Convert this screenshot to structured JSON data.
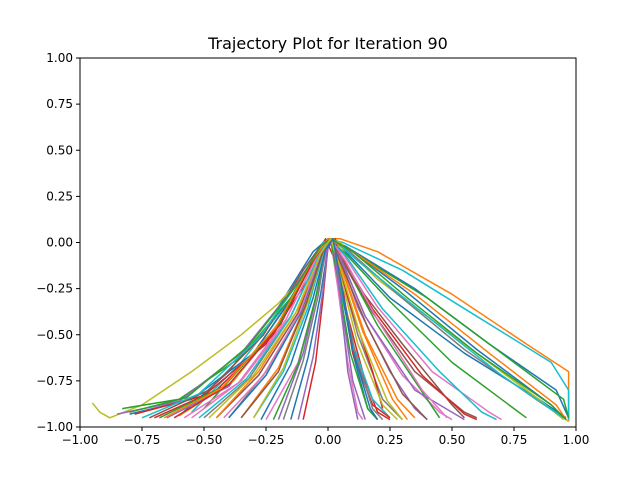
{
  "chart_data": {
    "type": "line",
    "title": "Trajectory Plot for Iteration 90",
    "xlabel": "",
    "ylabel": "",
    "xlim": [
      -1.0,
      1.0
    ],
    "ylim": [
      -1.0,
      1.0
    ],
    "xticks": [
      -1.0,
      -0.75,
      -0.5,
      -0.25,
      0.0,
      0.25,
      0.5,
      0.75,
      1.0
    ],
    "xtick_labels": [
      "−1.00",
      "−0.75",
      "−0.50",
      "−0.25",
      "0.00",
      "0.25",
      "0.50",
      "0.75",
      "1.00"
    ],
    "yticks": [
      1.0,
      0.75,
      0.5,
      0.25,
      0.0,
      -0.25,
      -0.5,
      -0.75,
      -1.0
    ],
    "ytick_labels": [
      "1.00",
      "0.75",
      "0.50",
      "0.25",
      "0.00",
      "−0.25",
      "−0.50",
      "−0.75",
      "−1.00"
    ],
    "grid": false,
    "legend": "none",
    "palette": [
      "#1f77b4",
      "#ff7f0e",
      "#2ca02c",
      "#d62728",
      "#9467bd",
      "#8c564b",
      "#e377c2",
      "#7f7f7f",
      "#bcbd22",
      "#17becf"
    ],
    "series": [
      {
        "color": "#ff7f0e",
        "x": [
          -0.5,
          -0.3,
          -0.12,
          -0.03,
          0.0,
          0.05,
          0.2,
          0.5,
          0.8,
          0.97,
          0.97
        ],
        "y": [
          -0.9,
          -0.6,
          -0.25,
          -0.02,
          0.02,
          0.02,
          -0.05,
          -0.28,
          -0.55,
          -0.7,
          -0.97
        ]
      },
      {
        "color": "#17becf",
        "x": [
          -0.55,
          -0.35,
          -0.15,
          -0.04,
          0.0,
          0.06,
          0.3,
          0.6,
          0.9,
          0.97,
          0.97
        ],
        "y": [
          -0.92,
          -0.65,
          -0.3,
          -0.05,
          0.02,
          0.0,
          -0.15,
          -0.4,
          -0.65,
          -0.8,
          -0.96
        ]
      },
      {
        "color": "#1f77b4",
        "x": [
          -0.6,
          -0.4,
          -0.2,
          -0.06,
          0.0,
          0.07,
          0.35,
          0.65,
          0.92,
          0.97
        ],
        "y": [
          -0.94,
          -0.7,
          -0.35,
          -0.05,
          0.02,
          -0.02,
          -0.25,
          -0.55,
          -0.8,
          -0.95
        ]
      },
      {
        "color": "#2ca02c",
        "x": [
          -0.5,
          -0.3,
          -0.12,
          -0.02,
          0.02,
          0.1,
          0.4,
          0.7,
          0.95,
          0.97
        ],
        "y": [
          -0.9,
          -0.6,
          -0.25,
          0.0,
          0.02,
          -0.05,
          -0.3,
          -0.6,
          -0.85,
          -0.95
        ]
      },
      {
        "color": "#bcbd22",
        "x": [
          -0.95,
          -0.92,
          -0.88,
          -0.75,
          -0.55,
          -0.35,
          -0.2,
          -0.1,
          -0.03,
          0.0,
          0.05,
          0.2,
          0.5,
          0.8,
          0.97
        ],
        "y": [
          -0.87,
          -0.92,
          -0.95,
          -0.88,
          -0.7,
          -0.5,
          -0.33,
          -0.18,
          -0.05,
          0.02,
          0.0,
          -0.2,
          -0.5,
          -0.8,
          -0.97
        ]
      },
      {
        "color": "#d62728",
        "x": [
          -0.7,
          -0.45,
          -0.22,
          -0.08,
          -0.01,
          0.03,
          0.08,
          0.15,
          0.2,
          0.25
        ],
        "y": [
          -0.95,
          -0.8,
          -0.5,
          -0.15,
          0.02,
          -0.1,
          -0.4,
          -0.75,
          -0.92,
          -0.96
        ]
      },
      {
        "color": "#9467bd",
        "x": [
          -0.65,
          -0.4,
          -0.2,
          -0.06,
          0.0,
          0.04,
          0.12,
          0.25,
          0.35,
          0.4
        ],
        "y": [
          -0.95,
          -0.78,
          -0.45,
          -0.1,
          0.02,
          -0.05,
          -0.35,
          -0.7,
          -0.9,
          -0.96
        ]
      },
      {
        "color": "#e377c2",
        "x": [
          -0.55,
          -0.35,
          -0.15,
          -0.04,
          0.01,
          0.05,
          0.15,
          0.3,
          0.45,
          0.5
        ],
        "y": [
          -0.95,
          -0.75,
          -0.4,
          -0.08,
          0.02,
          -0.08,
          -0.4,
          -0.72,
          -0.92,
          -0.96
        ]
      },
      {
        "color": "#8c564b",
        "x": [
          -0.45,
          -0.28,
          -0.12,
          -0.03,
          0.01,
          0.06,
          0.18,
          0.35,
          0.55,
          0.6
        ],
        "y": [
          -0.95,
          -0.72,
          -0.38,
          -0.06,
          0.02,
          -0.1,
          -0.38,
          -0.7,
          -0.92,
          -0.95
        ]
      },
      {
        "color": "#7f7f7f",
        "x": [
          -0.4,
          -0.25,
          -0.1,
          -0.02,
          0.01,
          0.05,
          0.12,
          0.22,
          0.3
        ],
        "y": [
          -0.95,
          -0.7,
          -0.35,
          -0.05,
          0.02,
          -0.15,
          -0.5,
          -0.85,
          -0.96
        ]
      },
      {
        "color": "#1f77b4",
        "x": [
          -0.8,
          -0.55,
          -0.3,
          -0.12,
          -0.03,
          0.0,
          0.05,
          0.25,
          0.55,
          0.85,
          0.96
        ],
        "y": [
          -0.93,
          -0.85,
          -0.6,
          -0.25,
          -0.03,
          0.02,
          -0.02,
          -0.3,
          -0.6,
          -0.85,
          -0.95
        ]
      },
      {
        "color": "#2ca02c",
        "x": [
          -0.83,
          -0.6,
          -0.35,
          -0.15,
          -0.04,
          0.0,
          0.06,
          0.2,
          0.4,
          0.45
        ],
        "y": [
          -0.9,
          -0.85,
          -0.62,
          -0.3,
          -0.05,
          0.02,
          -0.1,
          -0.45,
          -0.85,
          -0.95
        ]
      },
      {
        "color": "#d62728",
        "x": [
          -0.78,
          -0.5,
          -0.25,
          -0.08,
          -0.01,
          0.02,
          0.08,
          0.18,
          0.22
        ],
        "y": [
          -0.93,
          -0.83,
          -0.55,
          -0.2,
          0.0,
          0.01,
          -0.3,
          -0.7,
          -0.9
        ]
      },
      {
        "color": "#17becf",
        "x": [
          -0.3,
          -0.18,
          -0.08,
          -0.02,
          0.01,
          0.04,
          0.1,
          0.18,
          0.25
        ],
        "y": [
          -0.95,
          -0.7,
          -0.35,
          -0.06,
          0.02,
          -0.2,
          -0.55,
          -0.85,
          -0.95
        ]
      },
      {
        "color": "#ff7f0e",
        "x": [
          -0.35,
          -0.2,
          -0.08,
          -0.02,
          0.01,
          0.06,
          0.15,
          0.28,
          0.35
        ],
        "y": [
          -0.95,
          -0.68,
          -0.3,
          -0.04,
          0.02,
          -0.15,
          -0.5,
          -0.85,
          -0.95
        ]
      },
      {
        "color": "#9467bd",
        "x": [
          -0.2,
          -0.1,
          -0.04,
          0.0,
          0.02,
          0.05,
          0.1,
          0.15
        ],
        "y": [
          -0.96,
          -0.6,
          -0.25,
          0.0,
          0.01,
          -0.3,
          -0.75,
          -0.96
        ]
      },
      {
        "color": "#bcbd22",
        "x": [
          -0.6,
          -0.38,
          -0.18,
          -0.05,
          0.0,
          0.08,
          0.3,
          0.6,
          0.85,
          0.95
        ],
        "y": [
          -0.94,
          -0.75,
          -0.4,
          -0.08,
          0.02,
          -0.05,
          -0.3,
          -0.6,
          -0.85,
          -0.96
        ]
      },
      {
        "color": "#e377c2",
        "x": [
          -0.25,
          -0.12,
          -0.05,
          -0.01,
          0.01,
          0.04,
          0.08,
          0.12,
          0.14
        ],
        "y": [
          -0.96,
          -0.65,
          -0.3,
          -0.05,
          0.02,
          -0.25,
          -0.65,
          -0.92,
          -0.96
        ]
      },
      {
        "color": "#8c564b",
        "x": [
          -0.72,
          -0.48,
          -0.26,
          -0.1,
          -0.02,
          0.01,
          0.1,
          0.3,
          0.5,
          0.55
        ],
        "y": [
          -0.95,
          -0.8,
          -0.5,
          -0.15,
          0.0,
          0.02,
          -0.2,
          -0.55,
          -0.88,
          -0.95
        ]
      },
      {
        "color": "#1f77b4",
        "x": [
          -0.15,
          -0.08,
          -0.03,
          0.0,
          0.02,
          0.05,
          0.1,
          0.16,
          0.2
        ],
        "y": [
          -0.96,
          -0.62,
          -0.28,
          -0.03,
          0.01,
          -0.22,
          -0.6,
          -0.9,
          -0.96
        ]
      },
      {
        "color": "#2ca02c",
        "x": [
          -0.68,
          -0.42,
          -0.2,
          -0.06,
          0.0,
          0.07,
          0.25,
          0.5,
          0.75,
          0.8
        ],
        "y": [
          -0.95,
          -0.78,
          -0.45,
          -0.1,
          0.02,
          -0.06,
          -0.32,
          -0.65,
          -0.9,
          -0.95
        ]
      },
      {
        "color": "#d62728",
        "x": [
          -0.1,
          -0.05,
          -0.02,
          0.0,
          0.03,
          0.06,
          0.1,
          0.18,
          0.25
        ],
        "y": [
          -0.96,
          -0.65,
          -0.3,
          -0.02,
          0.02,
          -0.25,
          -0.6,
          -0.88,
          -0.95
        ]
      },
      {
        "color": "#7f7f7f",
        "x": [
          -0.5,
          -0.32,
          -0.15,
          -0.04,
          0.0,
          0.08,
          0.28,
          0.55,
          0.85,
          0.95
        ],
        "y": [
          -0.95,
          -0.74,
          -0.4,
          -0.08,
          0.02,
          -0.04,
          -0.28,
          -0.58,
          -0.86,
          -0.95
        ]
      },
      {
        "color": "#17becf",
        "x": [
          -0.75,
          -0.52,
          -0.28,
          -0.1,
          -0.02,
          0.02,
          0.12,
          0.4,
          0.7,
          0.95
        ],
        "y": [
          -0.95,
          -0.82,
          -0.52,
          -0.18,
          0.0,
          0.02,
          -0.1,
          -0.4,
          -0.72,
          -0.95
        ]
      },
      {
        "color": "#ff7f0e",
        "x": [
          -0.45,
          -0.28,
          -0.12,
          -0.03,
          0.01,
          0.05,
          0.14,
          0.26,
          0.32
        ],
        "y": [
          -0.95,
          -0.7,
          -0.36,
          -0.06,
          0.02,
          -0.12,
          -0.48,
          -0.85,
          -0.96
        ]
      },
      {
        "color": "#9467bd",
        "x": [
          -0.85,
          -0.6,
          -0.35,
          -0.14,
          -0.03,
          0.0,
          0.05,
          0.15,
          0.35,
          0.55
        ],
        "y": [
          -0.93,
          -0.86,
          -0.6,
          -0.25,
          -0.03,
          0.02,
          -0.08,
          -0.4,
          -0.8,
          -0.96
        ]
      },
      {
        "color": "#e377c2",
        "x": [
          -0.58,
          -0.36,
          -0.17,
          -0.05,
          0.0,
          0.06,
          0.2,
          0.42,
          0.65,
          0.7
        ],
        "y": [
          -0.95,
          -0.76,
          -0.42,
          -0.09,
          0.02,
          -0.06,
          -0.35,
          -0.7,
          -0.92,
          -0.96
        ]
      },
      {
        "color": "#bcbd22",
        "x": [
          -0.3,
          -0.18,
          -0.08,
          -0.02,
          0.01,
          0.05,
          0.12,
          0.22,
          0.28
        ],
        "y": [
          -0.95,
          -0.68,
          -0.32,
          -0.05,
          0.02,
          -0.18,
          -0.55,
          -0.88,
          -0.96
        ]
      },
      {
        "color": "#1f77b4",
        "x": [
          -0.4,
          -0.25,
          -0.11,
          -0.03,
          0.0,
          0.08,
          0.3,
          0.6,
          0.9,
          0.96
        ],
        "y": [
          -0.95,
          -0.72,
          -0.38,
          -0.07,
          0.02,
          -0.03,
          -0.25,
          -0.58,
          -0.88,
          -0.96
        ]
      },
      {
        "color": "#2ca02c",
        "x": [
          -0.22,
          -0.12,
          -0.05,
          -0.01,
          0.01,
          0.04,
          0.09,
          0.16,
          0.2
        ],
        "y": [
          -0.96,
          -0.66,
          -0.3,
          -0.04,
          0.02,
          -0.2,
          -0.6,
          -0.9,
          -0.96
        ]
      },
      {
        "color": "#d62728",
        "x": [
          -0.62,
          -0.4,
          -0.19,
          -0.06,
          0.0,
          0.05,
          0.18,
          0.38,
          0.55,
          0.6
        ],
        "y": [
          -0.95,
          -0.77,
          -0.44,
          -0.1,
          0.02,
          -0.06,
          -0.36,
          -0.72,
          -0.93,
          -0.96
        ]
      },
      {
        "color": "#8c564b",
        "x": [
          -0.35,
          -0.2,
          -0.09,
          -0.02,
          0.01,
          0.06,
          0.16,
          0.3,
          0.4
        ],
        "y": [
          -0.95,
          -0.7,
          -0.34,
          -0.05,
          0.02,
          -0.14,
          -0.46,
          -0.82,
          -0.96
        ]
      },
      {
        "color": "#17becf",
        "x": [
          -0.52,
          -0.33,
          -0.15,
          -0.04,
          0.0,
          0.07,
          0.22,
          0.45,
          0.62,
          0.68
        ],
        "y": [
          -0.95,
          -0.74,
          -0.4,
          -0.08,
          0.02,
          -0.07,
          -0.36,
          -0.7,
          -0.92,
          -0.96
        ]
      },
      {
        "color": "#9467bd",
        "x": [
          -0.12,
          -0.06,
          -0.02,
          0.0,
          0.02,
          0.05,
          0.08,
          0.12
        ],
        "y": [
          -0.96,
          -0.62,
          -0.26,
          -0.02,
          0.01,
          -0.3,
          -0.7,
          -0.96
        ]
      },
      {
        "color": "#ff7f0e",
        "x": [
          -0.66,
          -0.43,
          -0.21,
          -0.07,
          0.0,
          0.09,
          0.35,
          0.65,
          0.92,
          0.96
        ],
        "y": [
          -0.95,
          -0.79,
          -0.46,
          -0.11,
          0.02,
          -0.04,
          -0.28,
          -0.6,
          -0.88,
          -0.96
        ]
      },
      {
        "color": "#7f7f7f",
        "x": [
          -0.18,
          -0.1,
          -0.04,
          -0.01,
          0.02,
          0.05,
          0.11,
          0.18,
          0.22
        ],
        "y": [
          -0.96,
          -0.64,
          -0.29,
          -0.04,
          0.02,
          -0.22,
          -0.6,
          -0.9,
          -0.96
        ]
      },
      {
        "color": "#e377c2",
        "x": [
          -0.42,
          -0.26,
          -0.11,
          -0.03,
          0.01,
          0.07,
          0.2,
          0.38,
          0.48
        ],
        "y": [
          -0.95,
          -0.72,
          -0.37,
          -0.06,
          0.02,
          -0.1,
          -0.42,
          -0.8,
          -0.95
        ]
      },
      {
        "color": "#2ca02c",
        "x": [
          -0.8,
          -0.57,
          -0.32,
          -0.12,
          -0.03,
          0.01,
          0.1,
          0.32,
          0.6,
          0.9,
          0.96
        ],
        "y": [
          -0.92,
          -0.84,
          -0.56,
          -0.22,
          -0.02,
          0.02,
          -0.05,
          -0.3,
          -0.6,
          -0.88,
          -0.96
        ]
      },
      {
        "color": "#bcbd22",
        "x": [
          -0.48,
          -0.3,
          -0.13,
          -0.03,
          0.01,
          0.05,
          0.13,
          0.24,
          0.3
        ],
        "y": [
          -0.95,
          -0.72,
          -0.38,
          -0.06,
          0.02,
          -0.14,
          -0.5,
          -0.86,
          -0.96
        ]
      },
      {
        "color": "#1f77b4",
        "x": [
          -0.27,
          -0.15,
          -0.06,
          -0.01,
          0.02,
          0.05,
          0.1,
          0.17,
          0.2
        ],
        "y": [
          -0.96,
          -0.66,
          -0.3,
          -0.04,
          0.02,
          -0.2,
          -0.58,
          -0.9,
          -0.96
        ]
      }
    ]
  }
}
